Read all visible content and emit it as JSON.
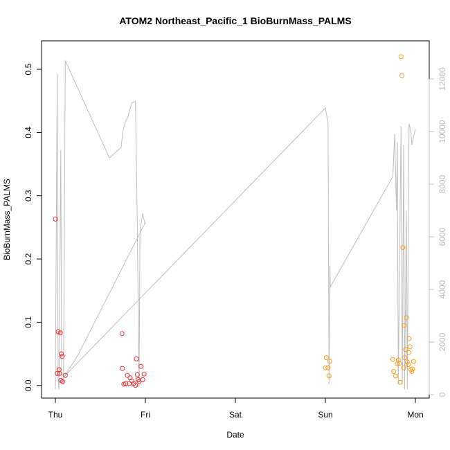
{
  "chart_data": {
    "type": "scatter",
    "title": "ATOM2 Northeast_Pacific_1 BioBurnMass_PALMS",
    "xlabel": "Date",
    "ylabel": "BioBurnMass_PALMS",
    "x_ticks": [
      "Thu",
      "Fri",
      "Sat",
      "Sun",
      "Mon"
    ],
    "y_ticks": [
      "0.0",
      "0.1",
      "0.2",
      "0.3",
      "0.4",
      "0.5"
    ],
    "y_right_ticks": [
      "0",
      "2000",
      "4000",
      "6000",
      "8000",
      "10000",
      "12000"
    ],
    "ylim": [
      -0.02,
      0.545
    ],
    "y_right_lim": [
      -130,
      13450
    ],
    "grid": false,
    "colors": {
      "flight1": "#ee2c2c",
      "flight2": "#ff9a1f",
      "altitude": "#bdbdbd"
    },
    "series": [
      {
        "values": [
          [
            0.0,
            0.263
          ],
          [
            0.02,
            0.019
          ],
          [
            0.03,
            0.085
          ],
          [
            0.04,
            0.025
          ],
          [
            0.045,
            0.019
          ],
          [
            0.055,
            0.083
          ],
          [
            0.06,
            0.008
          ],
          [
            0.065,
            0.05
          ],
          [
            0.075,
            0.046
          ],
          [
            0.08,
            0.006
          ],
          [
            0.11,
            0.016
          ],
          [
            0.74,
            0.082
          ],
          [
            0.745,
            0.027
          ],
          [
            0.76,
            0.002
          ],
          [
            0.78,
            0.003
          ],
          [
            0.8,
            0.016
          ],
          [
            0.82,
            0.003
          ],
          [
            0.83,
            0.012
          ],
          [
            0.85,
            0.007
          ],
          [
            0.87,
            0.003
          ],
          [
            0.89,
            0.0
          ],
          [
            0.9,
            0.042
          ],
          [
            0.91,
            0.017
          ],
          [
            0.92,
            0.009
          ],
          [
            0.93,
            0.006
          ],
          [
            0.95,
            0.03
          ],
          [
            0.97,
            0.009
          ],
          [
            0.985,
            0.018
          ]
        ]
      },
      {
        "values": [
          [
            3.0,
            0.028
          ],
          [
            3.01,
            0.044
          ],
          [
            3.04,
            0.015
          ],
          [
            3.05,
            0.038
          ],
          [
            3.03,
            0.028
          ],
          [
            3.75,
            0.041
          ],
          [
            3.76,
            0.022
          ],
          [
            3.78,
            0.015
          ],
          [
            3.8,
            0.034
          ],
          [
            3.81,
            0.04
          ],
          [
            3.82,
            0.035
          ],
          [
            3.83,
            0.005
          ],
          [
            3.84,
            0.52
          ],
          [
            3.85,
            0.49
          ],
          [
            3.86,
            0.218
          ],
          [
            3.87,
            0.028
          ],
          [
            3.875,
            0.095
          ],
          [
            3.88,
            0.044
          ],
          [
            3.89,
            0.057
          ],
          [
            3.9,
            0.107
          ],
          [
            3.91,
            0.037
          ],
          [
            3.92,
            0.033
          ],
          [
            3.925,
            0.052
          ],
          [
            3.93,
            0.074
          ],
          [
            3.94,
            0.061
          ],
          [
            3.95,
            0.025
          ],
          [
            3.96,
            0.022
          ],
          [
            3.97,
            0.026
          ],
          [
            3.98,
            0.038
          ]
        ]
      },
      {
        "axis": "right",
        "values": [
          [
            0.0,
            200
          ],
          [
            0.02,
            12200
          ],
          [
            0.03,
            600
          ],
          [
            0.04,
            200
          ],
          [
            0.06,
            9300
          ],
          [
            0.07,
            500
          ],
          [
            0.09,
            400
          ],
          [
            0.11,
            12700
          ],
          [
            0.6,
            9000
          ],
          [
            0.73,
            9400
          ],
          [
            0.75,
            10000
          ],
          [
            0.78,
            10400
          ],
          [
            0.8,
            10500
          ],
          [
            0.85,
            11100
          ],
          [
            0.89,
            11150
          ],
          [
            0.91,
            6500
          ],
          [
            0.93,
            300
          ],
          [
            0.94,
            6200
          ],
          [
            0.97,
            6900
          ],
          [
            0.975,
            6800
          ],
          [
            0.98,
            6700
          ],
          [
            0.99,
            6600
          ],
          [
            0.995,
            6500
          ],
          [
            1.0,
            6550
          ],
          [
            0.25,
            1500
          ],
          [
            0.1,
            700
          ],
          [
            3.0,
            10900
          ],
          [
            3.03,
            10300
          ],
          [
            3.04,
            400
          ],
          [
            3.05,
            4900
          ],
          [
            3.055,
            4100
          ],
          [
            3.75,
            8300
          ],
          [
            3.77,
            9900
          ],
          [
            3.79,
            7000
          ],
          [
            3.8,
            9600
          ],
          [
            3.81,
            400
          ],
          [
            3.84,
            10200
          ],
          [
            3.855,
            400
          ],
          [
            3.87,
            9500
          ],
          [
            3.88,
            200
          ],
          [
            3.9,
            7000
          ],
          [
            3.91,
            200
          ],
          [
            3.93,
            10300
          ],
          [
            3.95,
            10000
          ],
          [
            3.96,
            9500
          ],
          [
            4.0,
            10100
          ]
        ]
      }
    ]
  }
}
